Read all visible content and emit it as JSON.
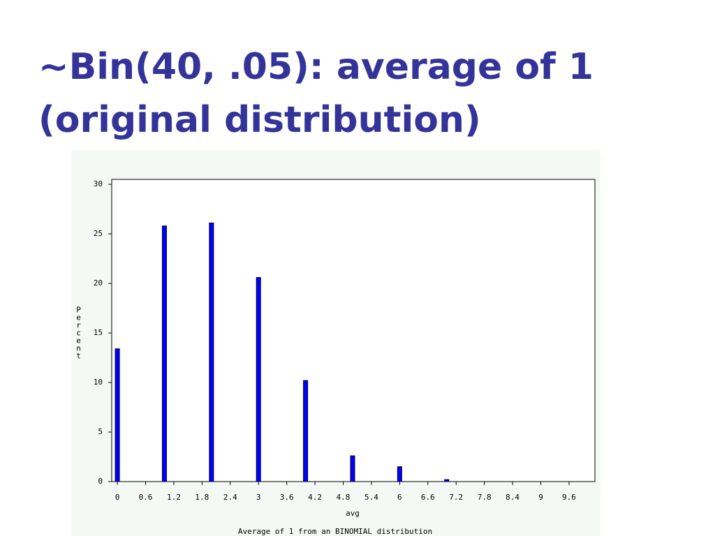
{
  "title": "~Bin(40, .05): average of 1 (original distribution)",
  "chart_data": {
    "type": "bar",
    "x": [
      0,
      1,
      2,
      3,
      4,
      5,
      6,
      7
    ],
    "values": [
      13.4,
      25.8,
      26.1,
      20.6,
      10.2,
      2.6,
      1.5,
      0.2
    ],
    "color": "#0000ff",
    "xlim": [
      -0.12,
      10.15
    ],
    "xticks": [
      0,
      0.6,
      1.2,
      1.8,
      2.4,
      3,
      3.6,
      4.2,
      4.8,
      5.4,
      6,
      6.6,
      7.2,
      7.8,
      8.4,
      9,
      9.6
    ],
    "ylim": [
      0,
      30.5
    ],
    "yticks": [
      0,
      5,
      10,
      15,
      20,
      25,
      30
    ],
    "xlabel": "avg",
    "ylabel": "Percent",
    "footnote": "Average of 1 from an BINOMIAL distribution"
  }
}
